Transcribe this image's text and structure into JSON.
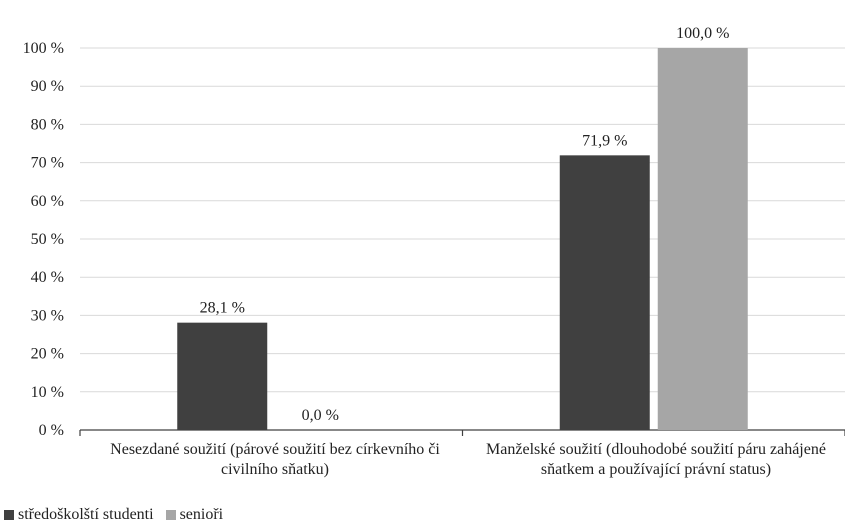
{
  "chart_data": {
    "type": "bar",
    "categories": [
      "Nesezdané soužití (párové soužití bez církevního či civilního sňatku)",
      "Manželské soužití (dlouhodobé soužití páru zahájené sňatkem a používající právní status)"
    ],
    "series": [
      {
        "name": "středoškolští studenti",
        "values": [
          28.1,
          71.9
        ],
        "labels": [
          "28,1 %",
          "71,9 %"
        ],
        "color": "#404040"
      },
      {
        "name": "senioři",
        "values": [
          0.0,
          100.0
        ],
        "labels": [
          "0,0 %",
          "100,0 %"
        ],
        "color": "#a6a6a6"
      }
    ],
    "y_ticks": [
      "0 %",
      "10 %",
      "20 %",
      "30 %",
      "40 %",
      "50 %",
      "60 %",
      "70 %",
      "80 %",
      "90 %",
      "100 %"
    ],
    "ylim": [
      0,
      100
    ],
    "grid": true,
    "legend_position": "bottom-left",
    "xlabel": "",
    "ylabel": "",
    "title": ""
  }
}
